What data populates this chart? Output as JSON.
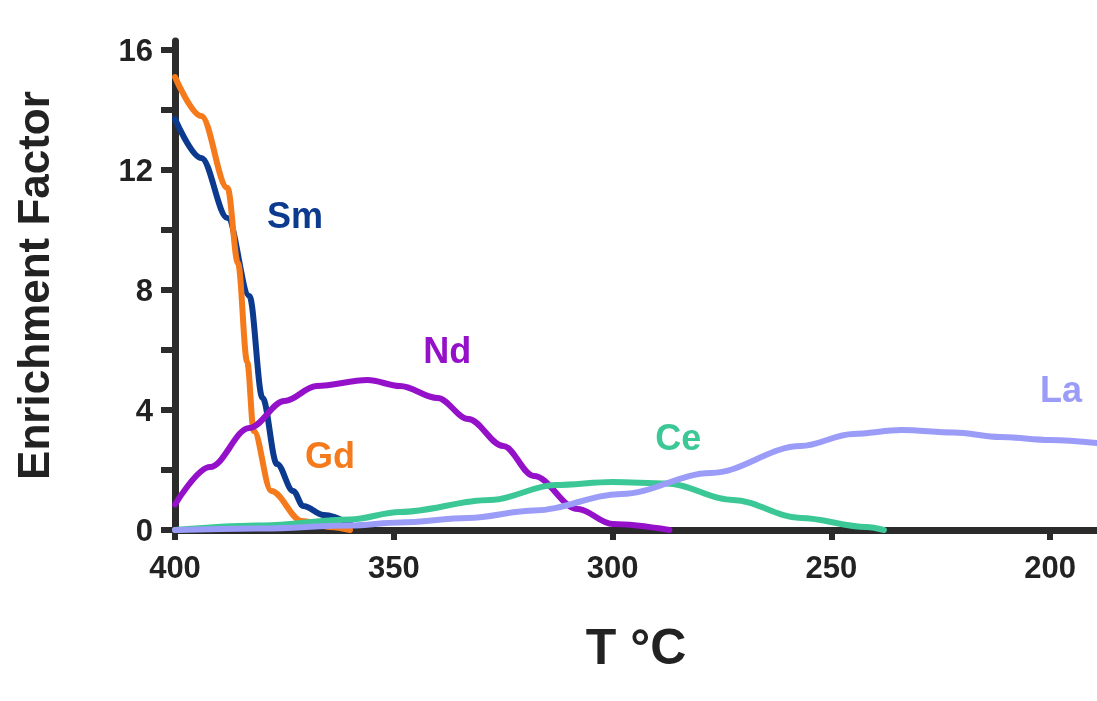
{
  "chart_data": {
    "type": "line",
    "xlabel": "T °C",
    "ylabel": "Enrichment Factor",
    "xlim": [
      400,
      189.3
    ],
    "xticks": [
      400,
      350,
      300,
      250,
      200
    ],
    "ylim": [
      0,
      16.3
    ],
    "yticks": [
      0,
      {
        "value": 2,
        "label": null
      },
      4,
      {
        "value": 6,
        "label": null
      },
      8,
      {
        "value": 10,
        "label": null
      },
      12,
      {
        "value": 14,
        "label": null
      },
      16
    ],
    "grid": false,
    "legend": false,
    "marker": "none",
    "line_style": "solid",
    "series": [
      {
        "name": "Sm",
        "color": "#0b3a8f",
        "x": [
          400,
          394,
          388,
          383,
          380,
          376.7,
          373,
          370.7,
          366,
          360
        ],
        "values": [
          13.7,
          12.4,
          10.4,
          7.8,
          4.4,
          2.2,
          1.3,
          0.8,
          0.5,
          0.2
        ]
      },
      {
        "name": "Gd",
        "color": "#f47a1c",
        "x": [
          400,
          394,
          388,
          385.6,
          383.5,
          382,
          378,
          371,
          364.6,
          360
        ],
        "values": [
          15.1,
          13.8,
          11.4,
          8.9,
          5.6,
          3.3,
          1.3,
          0.3,
          0.1,
          0
        ]
      },
      {
        "name": "Nd",
        "color": "#9410c9",
        "x": [
          400,
          392,
          383,
          375,
          367.6,
          356,
          348.6,
          340,
          333,
          325,
          318,
          308,
          300,
          287
        ],
        "values": [
          0.85,
          2.1,
          3.4,
          4.3,
          4.8,
          5.0,
          4.8,
          4.4,
          3.7,
          2.8,
          1.8,
          0.7,
          0.2,
          0
        ]
      },
      {
        "name": "Ce",
        "color": "#3cc896",
        "x": [
          400,
          380,
          360,
          348.6,
          328,
          313,
          300,
          287.6,
          272.5,
          257,
          242,
          238
        ],
        "values": [
          0,
          0.15,
          0.35,
          0.6,
          1.0,
          1.5,
          1.6,
          1.55,
          1.0,
          0.4,
          0.1,
          0
        ]
      },
      {
        "name": "La",
        "color": "#9a9cf8",
        "x": [
          400,
          380,
          360,
          348.6,
          333,
          318,
          298,
          277.5,
          257,
          245,
          234,
          222,
          211.4,
          200,
          189.3
        ],
        "values": [
          0,
          0.05,
          0.15,
          0.25,
          0.4,
          0.65,
          1.2,
          1.9,
          2.8,
          3.2,
          3.33,
          3.25,
          3.1,
          3.0,
          2.9
        ]
      }
    ]
  }
}
